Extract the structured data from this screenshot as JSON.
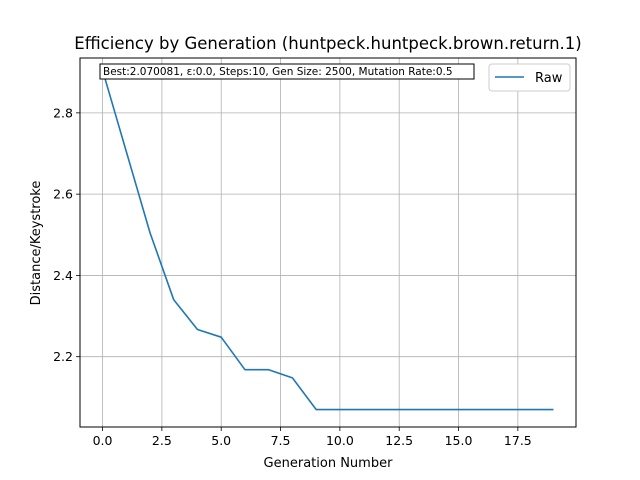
{
  "chart_data": {
    "type": "line",
    "title": "Efficiency by Generation (huntpeck.huntpeck.brown.return.1)",
    "xlabel": "Generation Number",
    "ylabel": "Distance/Keystroke",
    "xlim": [
      -0.95,
      19.95
    ],
    "ylim": [
      2.027,
      2.935
    ],
    "xticks": [
      0.0,
      2.5,
      5.0,
      7.5,
      10.0,
      12.5,
      15.0,
      17.5
    ],
    "xtick_labels": [
      "0.0",
      "2.5",
      "5.0",
      "7.5",
      "10.0",
      "12.5",
      "15.0",
      "17.5"
    ],
    "yticks": [
      2.2,
      2.4,
      2.6,
      2.8
    ],
    "ytick_labels": [
      "2.2",
      "2.4",
      "2.6",
      "2.8"
    ],
    "grid": true,
    "legend_position": "top-right",
    "annotation": "Best:2.070081, ε:0.0, Steps:10, Gen Size: 2500, Mutation Rate:0.5",
    "series": [
      {
        "name": "Raw",
        "color": "#1f77b4",
        "x": [
          0,
          1,
          2,
          3,
          4,
          5,
          6,
          7,
          8,
          9,
          10,
          11,
          12,
          13,
          14,
          15,
          16,
          17,
          18,
          19
        ],
        "values": [
          2.905,
          2.705,
          2.505,
          2.34,
          2.267,
          2.248,
          2.168,
          2.168,
          2.148,
          2.07,
          2.07,
          2.07,
          2.07,
          2.07,
          2.07,
          2.07,
          2.07,
          2.07,
          2.07,
          2.07
        ]
      }
    ]
  }
}
